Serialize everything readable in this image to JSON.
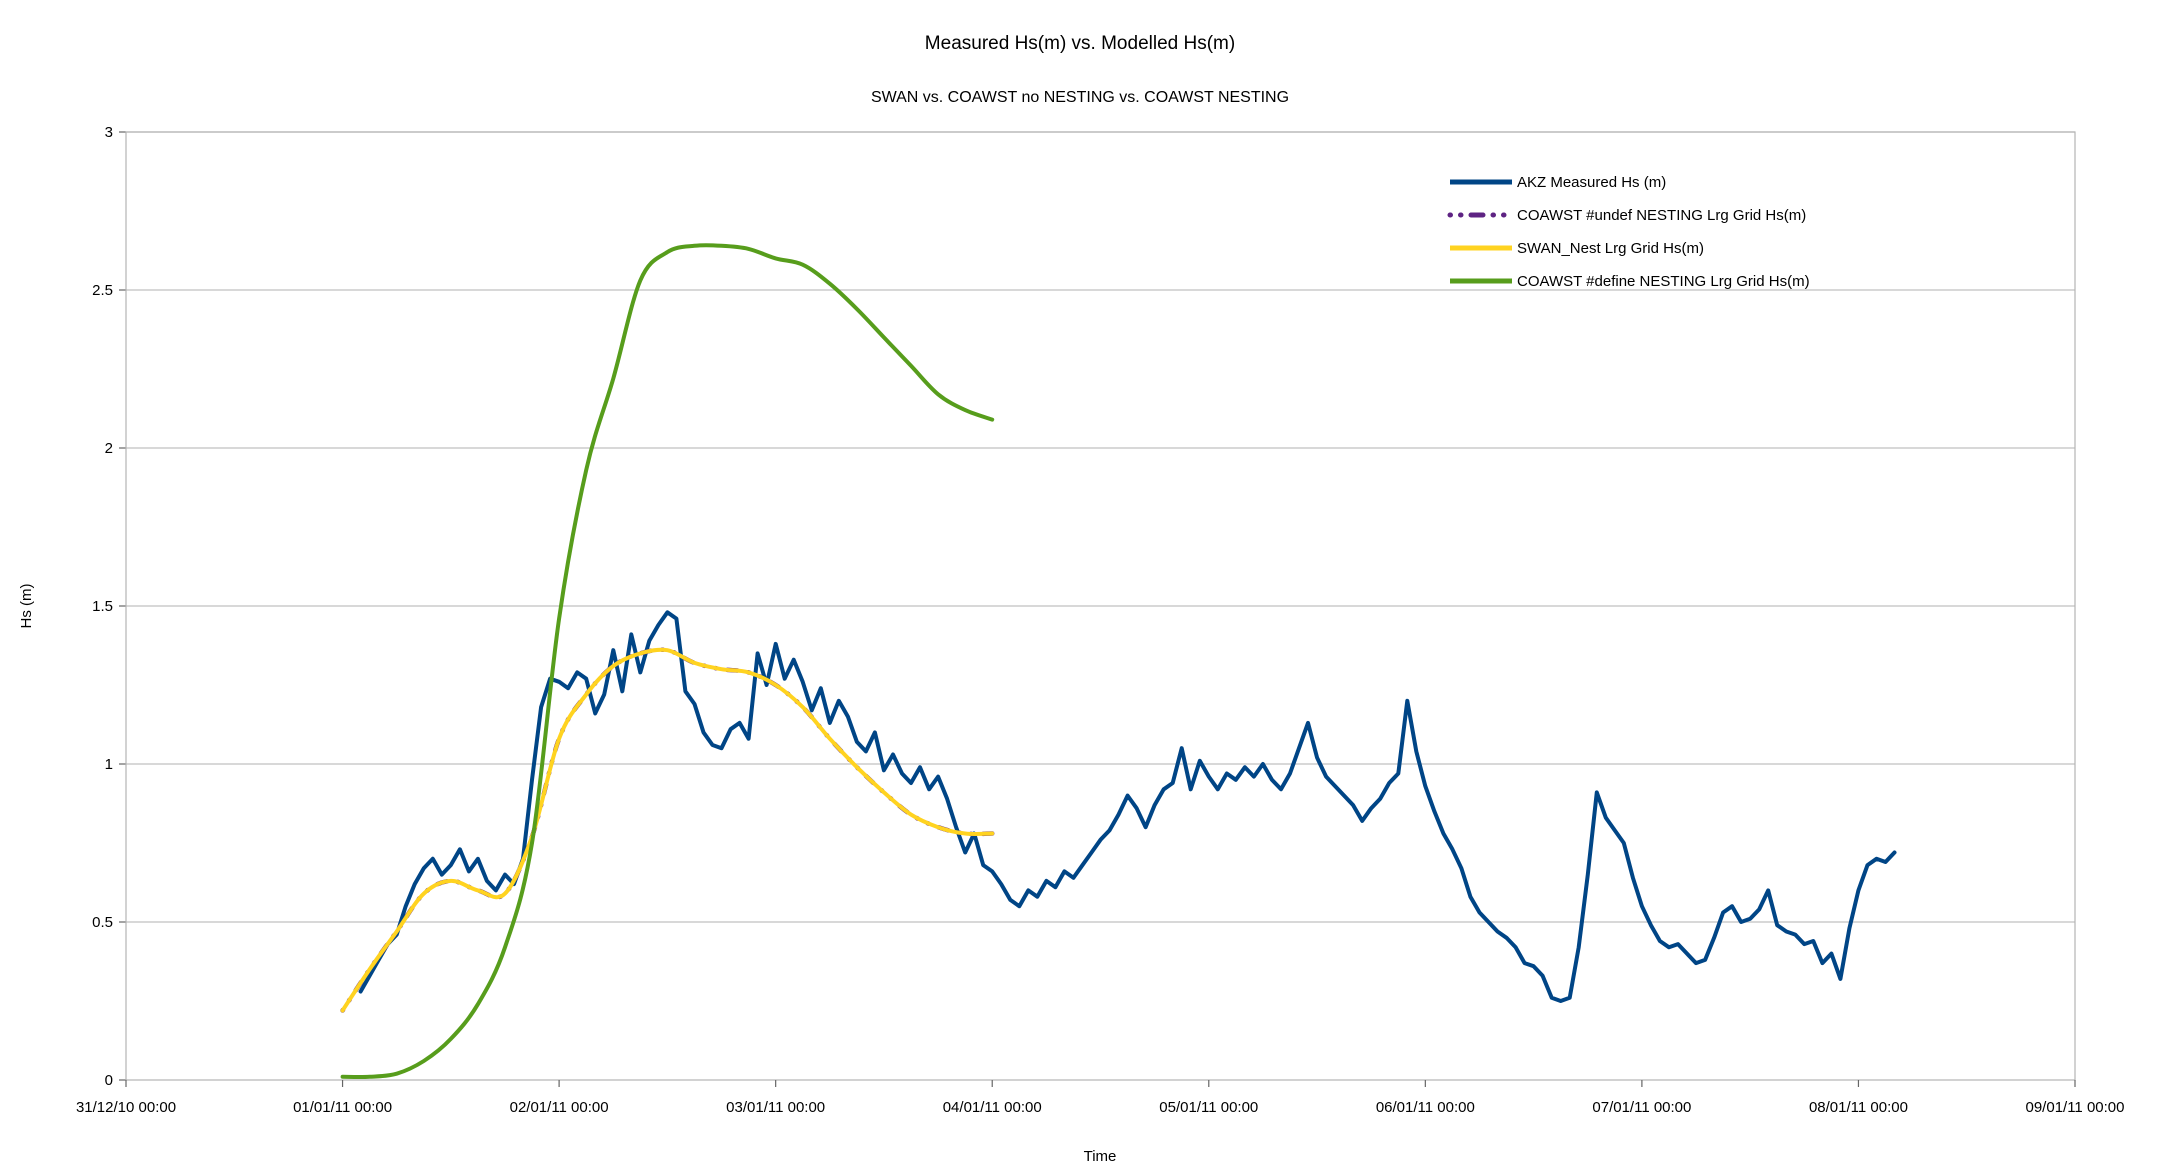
{
  "chart_data": {
    "type": "line",
    "title": "Measured Hs(m) vs. Modelled Hs(m)",
    "subtitle": "SWAN vs. COAWST no NESTING vs. COAWST NESTING",
    "xlabel": "Time",
    "ylabel": "Hs (m)",
    "grid": "horizontal-only",
    "legend_position": "top-right",
    "plot_bg": "#ffffff",
    "grid_color": "#c0c0c0",
    "axis_color": "#b3b3b3",
    "text_color": "#000000",
    "x_axis": {
      "tick_labels": [
        "31/12/10 00:00",
        "01/01/11 00:00",
        "02/01/11 00:00",
        "03/01/11 00:00",
        "04/01/11 00:00",
        "05/01/11 00:00",
        "06/01/11 00:00",
        "07/01/11 00:00",
        "08/01/11 00:00",
        "09/01/11 00:00"
      ],
      "tick_hours": [
        0,
        24,
        48,
        72,
        96,
        120,
        144,
        168,
        192,
        216
      ],
      "range_hours": [
        0,
        216
      ]
    },
    "y_axis": {
      "tick_labels": [
        "0",
        "0.5",
        "1",
        "1.5",
        "2",
        "2.5",
        "3"
      ],
      "ticks": [
        0,
        0.5,
        1,
        1.5,
        2,
        2.5,
        3
      ],
      "range": [
        0,
        3
      ]
    },
    "series": [
      {
        "label": "AKZ Measured Hs (m)",
        "color": "#004586",
        "style": "solid",
        "stroke_width": 4,
        "smooth": false,
        "x_start_hour": 26,
        "x_step_hours": 1,
        "values": [
          0.28,
          0.33,
          0.38,
          0.43,
          0.46,
          0.55,
          0.62,
          0.67,
          0.7,
          0.65,
          0.68,
          0.73,
          0.66,
          0.7,
          0.63,
          0.6,
          0.65,
          0.62,
          0.7,
          0.95,
          1.18,
          1.27,
          1.26,
          1.24,
          1.29,
          1.27,
          1.16,
          1.22,
          1.36,
          1.23,
          1.41,
          1.29,
          1.39,
          1.44,
          1.48,
          1.46,
          1.23,
          1.19,
          1.1,
          1.06,
          1.05,
          1.11,
          1.13,
          1.08,
          1.35,
          1.25,
          1.38,
          1.27,
          1.33,
          1.26,
          1.17,
          1.24,
          1.13,
          1.2,
          1.15,
          1.07,
          1.04,
          1.1,
          0.98,
          1.03,
          0.97,
          0.94,
          0.99,
          0.92,
          0.96,
          0.89,
          0.8,
          0.72,
          0.78,
          0.68,
          0.66,
          0.62,
          0.57,
          0.55,
          0.6,
          0.58,
          0.63,
          0.61,
          0.66,
          0.64,
          0.68,
          0.72,
          0.76,
          0.79,
          0.84,
          0.9,
          0.86,
          0.8,
          0.87,
          0.92,
          0.94,
          1.05,
          0.92,
          1.01,
          0.96,
          0.92,
          0.97,
          0.95,
          0.99,
          0.96,
          1.0,
          0.95,
          0.92,
          0.97,
          1.05,
          1.13,
          1.02,
          0.96,
          0.93,
          0.9,
          0.87,
          0.82,
          0.86,
          0.89,
          0.94,
          0.97,
          1.2,
          1.04,
          0.93,
          0.85,
          0.78,
          0.73,
          0.67,
          0.58,
          0.53,
          0.5,
          0.47,
          0.45,
          0.42,
          0.37,
          0.36,
          0.33,
          0.26,
          0.25,
          0.26,
          0.42,
          0.65,
          0.91,
          0.83,
          0.79,
          0.75,
          0.64,
          0.55,
          0.49,
          0.44,
          0.42,
          0.43,
          0.4,
          0.37,
          0.38,
          0.45,
          0.53,
          0.55,
          0.5,
          0.51,
          0.54,
          0.6,
          0.49,
          0.47,
          0.46,
          0.43,
          0.44,
          0.37,
          0.4,
          0.32,
          0.48,
          0.6,
          0.68,
          0.7,
          0.69,
          0.72
        ]
      },
      {
        "label": "COAWST #undef NESTING Lrg Grid Hs(m)",
        "color": "#5E2383",
        "style": "dash-dot",
        "stroke_width": 4.5,
        "smooth": true,
        "x_start_hour": 24,
        "x_step_hours": 3,
        "values": [
          0.22,
          0.35,
          0.47,
          0.59,
          0.63,
          0.6,
          0.59,
          0.77,
          1.08,
          1.22,
          1.31,
          1.35,
          1.36,
          1.32,
          1.3,
          1.29,
          1.25,
          1.18,
          1.08,
          0.99,
          0.91,
          0.84,
          0.8,
          0.78,
          0.78
        ]
      },
      {
        "label": "SWAN_Nest Lrg Grid Hs(m)",
        "color": "#FFD320",
        "style": "solid",
        "stroke_width": 4,
        "smooth": true,
        "x_start_hour": 24,
        "x_step_hours": 3,
        "values": [
          0.22,
          0.35,
          0.47,
          0.59,
          0.63,
          0.6,
          0.59,
          0.77,
          1.08,
          1.22,
          1.31,
          1.35,
          1.36,
          1.32,
          1.3,
          1.29,
          1.25,
          1.18,
          1.08,
          0.99,
          0.91,
          0.84,
          0.8,
          0.78,
          0.78
        ]
      },
      {
        "label": "COAWST #define NESTING Lrg Grid Hs(m)",
        "color": "#579D1C",
        "style": "solid",
        "stroke_width": 4,
        "smooth": true,
        "x_start_hour": 24,
        "x_step_hours": 3,
        "values": [
          0.01,
          0.01,
          0.02,
          0.06,
          0.13,
          0.24,
          0.42,
          0.75,
          1.46,
          1.93,
          2.22,
          2.53,
          2.62,
          2.64,
          2.64,
          2.63,
          2.6,
          2.58,
          2.52,
          2.44,
          2.35,
          2.26,
          2.17,
          2.12,
          2.09
        ]
      }
    ]
  }
}
